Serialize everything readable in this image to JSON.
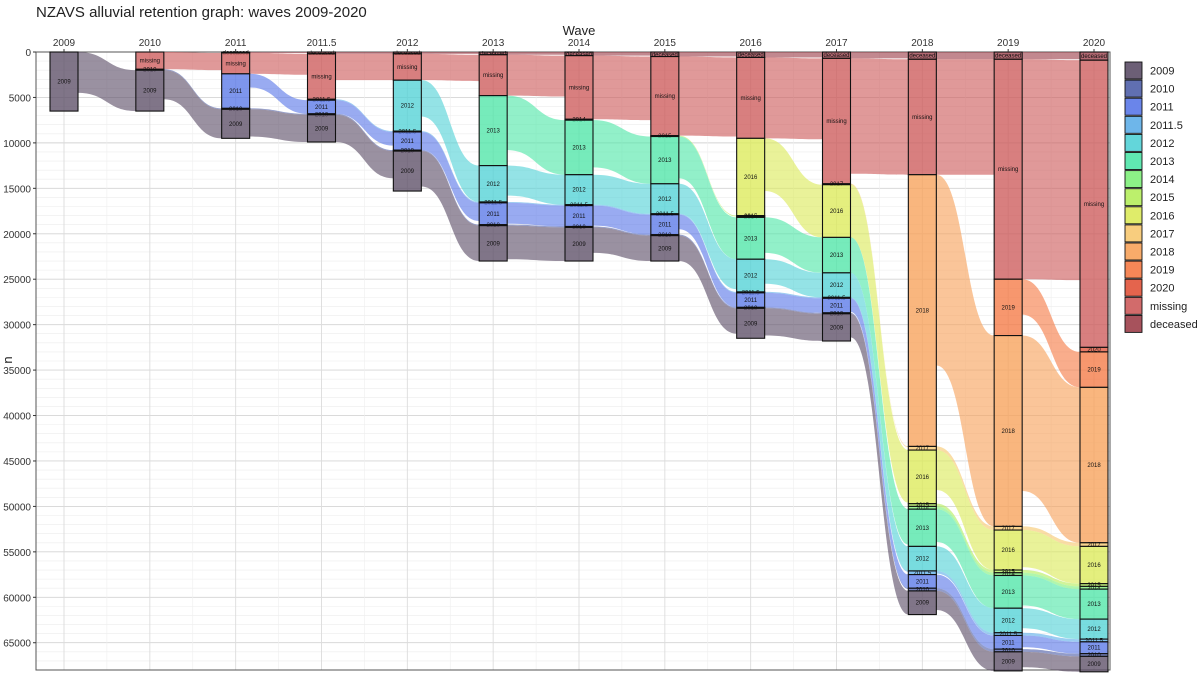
{
  "chart_data": {
    "type": "alluvial",
    "title": "NZAVS alluvial retention graph: waves 2009-2020",
    "xlabel": "Wave",
    "ylabel": "n",
    "waves": [
      "2009",
      "2010",
      "2011",
      "2011.5",
      "2012",
      "2013",
      "2014",
      "2015",
      "2016",
      "2017",
      "2018",
      "2019",
      "2020"
    ],
    "ylim": [
      0,
      68000
    ],
    "yticks": [
      0,
      5000,
      10000,
      15000,
      20000,
      25000,
      30000,
      35000,
      40000,
      45000,
      50000,
      55000,
      60000,
      65000
    ],
    "legend": {
      "position": "right",
      "entries": [
        {
          "label": "2009",
          "color": "#5c4e67"
        },
        {
          "label": "2010",
          "color": "#4f5fa8"
        },
        {
          "label": "2011",
          "color": "#5a78e8"
        },
        {
          "label": "2011.5",
          "color": "#5eaee8"
        },
        {
          "label": "2012",
          "color": "#52d2d6"
        },
        {
          "label": "2013",
          "color": "#4fe6a8"
        },
        {
          "label": "2014",
          "color": "#7ff07a"
        },
        {
          "label": "2015",
          "color": "#b5ee5c"
        },
        {
          "label": "2016",
          "color": "#dcea5a"
        },
        {
          "label": "2017",
          "color": "#f7c870"
        },
        {
          "label": "2018",
          "color": "#f7a25a"
        },
        {
          "label": "2019",
          "color": "#f57a45"
        },
        {
          "label": "2020",
          "color": "#e1533a"
        },
        {
          "label": "missing",
          "color": "#cd5b5b"
        },
        {
          "label": "deceased",
          "color": "#9d3f4a"
        }
      ]
    },
    "strata": [
      {
        "wave": "2009",
        "cells": [
          {
            "label": "2009",
            "n": 6500
          }
        ]
      },
      {
        "wave": "2010",
        "cells": [
          {
            "label": "missing",
            "n": 1900
          },
          {
            "label": "2010",
            "n": 100
          },
          {
            "label": "2009",
            "n": 4500
          }
        ]
      },
      {
        "wave": "2011",
        "cells": [
          {
            "label": "deceased",
            "n": 100
          },
          {
            "label": "missing",
            "n": 2300
          },
          {
            "label": "2011",
            "n": 3800
          },
          {
            "label": "2010",
            "n": 100
          },
          {
            "label": "2009",
            "n": 3200
          }
        ]
      },
      {
        "wave": "2011.5",
        "cells": [
          {
            "label": "deceased",
            "n": 200
          },
          {
            "label": "missing",
            "n": 5000
          },
          {
            "label": "2011.5",
            "n": 100
          },
          {
            "label": "2011",
            "n": 1500
          },
          {
            "label": "2010",
            "n": 100
          },
          {
            "label": "2009",
            "n": 3000
          }
        ]
      },
      {
        "wave": "2012",
        "cells": [
          {
            "label": "deceased",
            "n": 200
          },
          {
            "label": "missing",
            "n": 2900
          },
          {
            "label": "2012",
            "n": 5600
          },
          {
            "label": "2011.5",
            "n": 100
          },
          {
            "label": "2011",
            "n": 2000
          },
          {
            "label": "2010",
            "n": 100
          },
          {
            "label": "2009",
            "n": 4400
          }
        ]
      },
      {
        "wave": "2013",
        "cells": [
          {
            "label": "deceased",
            "n": 300
          },
          {
            "label": "missing",
            "n": 4500
          },
          {
            "label": "2013",
            "n": 7700
          },
          {
            "label": "2012",
            "n": 4000
          },
          {
            "label": "2011.5",
            "n": 100
          },
          {
            "label": "2011",
            "n": 2400
          },
          {
            "label": "2010",
            "n": 100
          },
          {
            "label": "2009",
            "n": 3900
          }
        ]
      },
      {
        "wave": "2014",
        "cells": [
          {
            "label": "deceased",
            "n": 400
          },
          {
            "label": "missing",
            "n": 7000
          },
          {
            "label": "2014",
            "n": 100
          },
          {
            "label": "2013",
            "n": 6000
          },
          {
            "label": "2012",
            "n": 3300
          },
          {
            "label": "2011.5",
            "n": 100
          },
          {
            "label": "2011",
            "n": 2300
          },
          {
            "label": "2010",
            "n": 100
          },
          {
            "label": "2009",
            "n": 3700
          }
        ]
      },
      {
        "wave": "2015",
        "cells": [
          {
            "label": "deceased",
            "n": 500
          },
          {
            "label": "missing",
            "n": 8700
          },
          {
            "label": "2015",
            "n": 100
          },
          {
            "label": "2013",
            "n": 5200
          },
          {
            "label": "2012",
            "n": 3300
          },
          {
            "label": "2011.5",
            "n": 100
          },
          {
            "label": "2011",
            "n": 2200
          },
          {
            "label": "2010",
            "n": 100
          },
          {
            "label": "2009",
            "n": 2800
          }
        ]
      },
      {
        "wave": "2016",
        "cells": [
          {
            "label": "deceased",
            "n": 600
          },
          {
            "label": "missing",
            "n": 8900
          },
          {
            "label": "2016",
            "n": 8500
          },
          {
            "label": "2015",
            "n": 100
          },
          {
            "label": "2014",
            "n": 100
          },
          {
            "label": "2013",
            "n": 4600
          },
          {
            "label": "2012",
            "n": 3600
          },
          {
            "label": "2011.5",
            "n": 100
          },
          {
            "label": "2011",
            "n": 1600
          },
          {
            "label": "2010",
            "n": 100
          },
          {
            "label": "2009",
            "n": 3300
          }
        ]
      },
      {
        "wave": "2017",
        "cells": [
          {
            "label": "deceased",
            "n": 700
          },
          {
            "label": "missing",
            "n": 13800
          },
          {
            "label": "2017",
            "n": 100
          },
          {
            "label": "2016",
            "n": 5800
          },
          {
            "label": "2013",
            "n": 3900
          },
          {
            "label": "2012",
            "n": 2700
          },
          {
            "label": "2011.5",
            "n": 100
          },
          {
            "label": "2011",
            "n": 1600
          },
          {
            "label": "2010",
            "n": 100
          },
          {
            "label": "2009",
            "n": 3000
          }
        ]
      },
      {
        "wave": "2018",
        "cells": [
          {
            "label": "deceased",
            "n": 800
          },
          {
            "label": "missing",
            "n": 12700
          },
          {
            "label": "2018",
            "n": 29900
          },
          {
            "label": "2017",
            "n": 400
          },
          {
            "label": "2016",
            "n": 5900
          },
          {
            "label": "2015",
            "n": 300
          },
          {
            "label": "2014",
            "n": 300
          },
          {
            "label": "2013",
            "n": 4100
          },
          {
            "label": "2012",
            "n": 2700
          },
          {
            "label": "2011.5",
            "n": 400
          },
          {
            "label": "2011",
            "n": 1500
          },
          {
            "label": "2010",
            "n": 300
          },
          {
            "label": "2009",
            "n": 2600
          }
        ]
      },
      {
        "wave": "2019",
        "cells": [
          {
            "label": "deceased",
            "n": 800
          },
          {
            "label": "missing",
            "n": 24200
          },
          {
            "label": "2019",
            "n": 6200
          },
          {
            "label": "2018",
            "n": 21000
          },
          {
            "label": "2017",
            "n": 400
          },
          {
            "label": "2016",
            "n": 4400
          },
          {
            "label": "2015",
            "n": 300
          },
          {
            "label": "2014",
            "n": 300
          },
          {
            "label": "2013",
            "n": 3600
          },
          {
            "label": "2012",
            "n": 2700
          },
          {
            "label": "2011.5",
            "n": 300
          },
          {
            "label": "2011",
            "n": 1500
          },
          {
            "label": "2010",
            "n": 300
          },
          {
            "label": "2009",
            "n": 2100
          }
        ]
      },
      {
        "wave": "2020",
        "cells": [
          {
            "label": "deceased",
            "n": 900
          },
          {
            "label": "missing",
            "n": 31600
          },
          {
            "label": "2020",
            "n": 500
          },
          {
            "label": "2019",
            "n": 3900
          },
          {
            "label": "2018",
            "n": 17100
          },
          {
            "label": "2017",
            "n": 400
          },
          {
            "label": "2016",
            "n": 4100
          },
          {
            "label": "2015",
            "n": 300
          },
          {
            "label": "2014",
            "n": 300
          },
          {
            "label": "2013",
            "n": 3300
          },
          {
            "label": "2012",
            "n": 2200
          },
          {
            "label": "2011.5",
            "n": 300
          },
          {
            "label": "2011",
            "n": 1300
          },
          {
            "label": "2010",
            "n": 300
          },
          {
            "label": "2009",
            "n": 1700
          }
        ]
      }
    ]
  }
}
